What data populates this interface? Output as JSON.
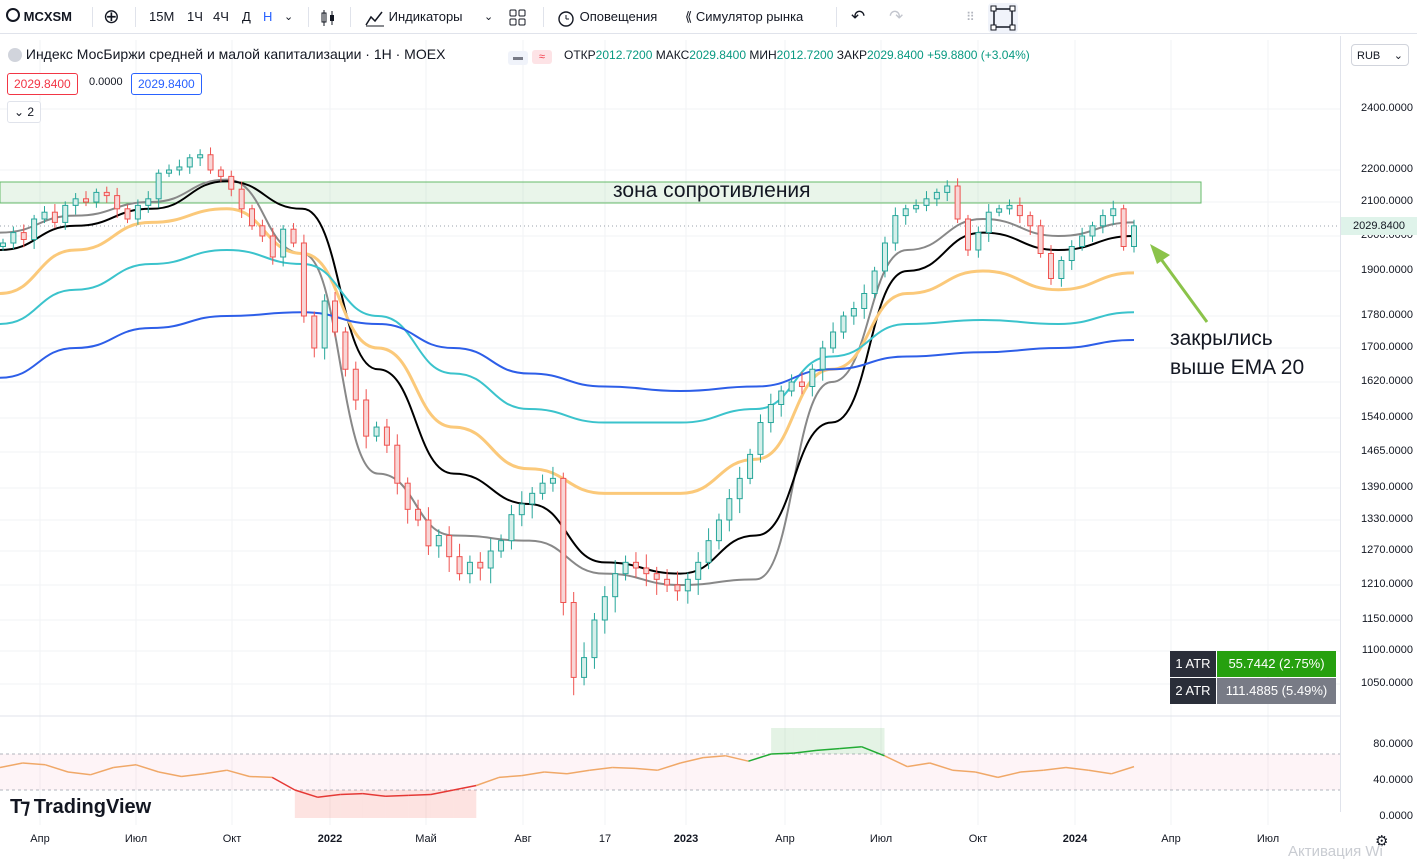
{
  "toolbar": {
    "symbol": "MCXSM",
    "intervals": [
      "15M",
      "1Ч",
      "4Ч",
      "Д",
      "Н"
    ],
    "active_interval": "Н",
    "indicators_label": "Индикаторы",
    "alerts_label": "Оповещения",
    "replay_label": "Симулятор рынка"
  },
  "legend": {
    "title": "Индекс МосБиржи средней и малой капитализации · 1Н · MOEX",
    "open_label": "ОТКР",
    "open_value": "2012.7200",
    "high_label": "МАКС",
    "high_value": "2029.8400",
    "low_label": "МИН",
    "low_value": "2012.7200",
    "close_label": "ЗАКР",
    "close_value": "2029.8400",
    "change": "+59.8800 (+3.04%)",
    "bid": "2029.8400",
    "spread": "0.0000",
    "ask": "2029.8400",
    "collapsed_count": "2",
    "currency": "RUB"
  },
  "price_axis": {
    "labels": [
      "2400.0000",
      "2200.0000",
      "2100.0000",
      "2000.0000",
      "1900.0000",
      "1780.0000",
      "1700.0000",
      "1620.0000",
      "1540.0000",
      "1465.0000",
      "1390.0000",
      "1330.0000",
      "1270.0000",
      "1210.0000",
      "1150.0000",
      "1100.0000",
      "1050.0000"
    ],
    "current_price": "2029.8400"
  },
  "osc_axis": {
    "labels": [
      "80.0000",
      "40.0000",
      "0.0000"
    ]
  },
  "time_axis": {
    "labels": [
      "Апр",
      "Июл",
      "Окт",
      "2022",
      "Май",
      "Авг",
      "17",
      "2023",
      "Апр",
      "Июл",
      "Окт",
      "2024",
      "Апр",
      "Июл"
    ],
    "bold": [
      "2022",
      "2023",
      "2024"
    ]
  },
  "annotations": {
    "zone_label": "зона сопротивления",
    "note_line1": "закрылись",
    "note_line2": "выше EMA 20"
  },
  "atr": [
    {
      "label": "1 ATR",
      "value": "55.7442 (2.75%)"
    },
    {
      "label": "2 ATR",
      "value": "111.4885 (5.49%)"
    }
  ],
  "branding": {
    "logo_text": "TradingView",
    "watermark": "Активация Wi"
  },
  "colors": {
    "up": "#26a69a",
    "down": "#ef5350",
    "accent": "#2962ff",
    "ema_fast": "#888888",
    "ema_black": "#000000",
    "ema_orange": "#fbc97a",
    "ema_cyan": "#3bc3cc",
    "ema_blue": "#2d5ee8",
    "osc": "#f0a868"
  },
  "chart_data": {
    "type": "candlestick",
    "symbol": "MCXSM",
    "timeframe": "1W",
    "price_range": [
      1020,
      2450
    ],
    "resistance_zone": [
      2095,
      2160
    ],
    "last": {
      "open": 2012.72,
      "high": 2029.84,
      "low": 2012.72,
      "close": 2029.84,
      "change": 59.88,
      "change_pct": 3.04
    },
    "closes": [
      1980,
      2010,
      1990,
      2050,
      2070,
      2040,
      2090,
      2110,
      2100,
      2130,
      2120,
      2080,
      2050,
      2090,
      2110,
      2190,
      2200,
      2210,
      2240,
      2250,
      2200,
      2180,
      2140,
      2080,
      2030,
      2000,
      1940,
      2020,
      1980,
      1780,
      1700,
      1820,
      1740,
      1650,
      1580,
      1500,
      1520,
      1480,
      1400,
      1350,
      1330,
      1280,
      1300,
      1260,
      1230,
      1250,
      1240,
      1270,
      1290,
      1340,
      1360,
      1380,
      1400,
      1410,
      1180,
      1060,
      1090,
      1150,
      1190,
      1230,
      1250,
      1240,
      1230,
      1220,
      1210,
      1200,
      1220,
      1250,
      1290,
      1330,
      1370,
      1410,
      1460,
      1530,
      1570,
      1600,
      1620,
      1610,
      1650,
      1700,
      1740,
      1780,
      1800,
      1840,
      1900,
      1980,
      2060,
      2080,
      2090,
      2110,
      2130,
      2150,
      2050,
      1960,
      2010,
      2070,
      2080,
      2090,
      2060,
      2030,
      1950,
      1880,
      1930,
      1970,
      2000,
      2030,
      2060,
      2080,
      1970,
      2029.84
    ],
    "ema_series": [
      {
        "name": "EMA fast (grey)",
        "values": [
          2010,
          2060,
          2100,
          2170,
          1950,
          1420,
          1300,
          1290,
          1230,
          1210,
          1220,
          1620,
          1960,
          2050,
          2000,
          2040
        ]
      },
      {
        "name": "EMA (black)",
        "values": [
          1960,
          2030,
          2080,
          2165,
          2080,
          1650,
          1420,
          1360,
          1250,
          1230,
          1300,
          1530,
          1900,
          2010,
          1960,
          2000
        ]
      },
      {
        "name": "EMA 20 (orange)",
        "values": [
          1840,
          1960,
          2040,
          2080,
          1950,
          1700,
          1520,
          1430,
          1380,
          1380,
          1450,
          1650,
          1840,
          1900,
          1850,
          1895
        ]
      },
      {
        "name": "EMA (cyan)",
        "values": [
          1760,
          1850,
          1920,
          1960,
          1920,
          1780,
          1640,
          1560,
          1530,
          1530,
          1560,
          1680,
          1760,
          1770,
          1760,
          1790
        ]
      },
      {
        "name": "EMA (blue)",
        "values": [
          1630,
          1700,
          1750,
          1780,
          1790,
          1760,
          1700,
          1640,
          1610,
          1600,
          1610,
          1650,
          1680,
          1690,
          1700,
          1720
        ]
      }
    ],
    "oscillator": {
      "range": [
        0,
        100
      ],
      "levels": [
        70,
        30
      ],
      "values": [
        55,
        60,
        58,
        50,
        47,
        55,
        58,
        50,
        45,
        48,
        52,
        45,
        44,
        30,
        22,
        25,
        26,
        23,
        24,
        25,
        30,
        35,
        44,
        46,
        50,
        48,
        52,
        55,
        54,
        52,
        60,
        66,
        68,
        62,
        70,
        71,
        74,
        76,
        78,
        68,
        56,
        60,
        52,
        50,
        44,
        50,
        52,
        55,
        52,
        48,
        56
      ]
    }
  }
}
